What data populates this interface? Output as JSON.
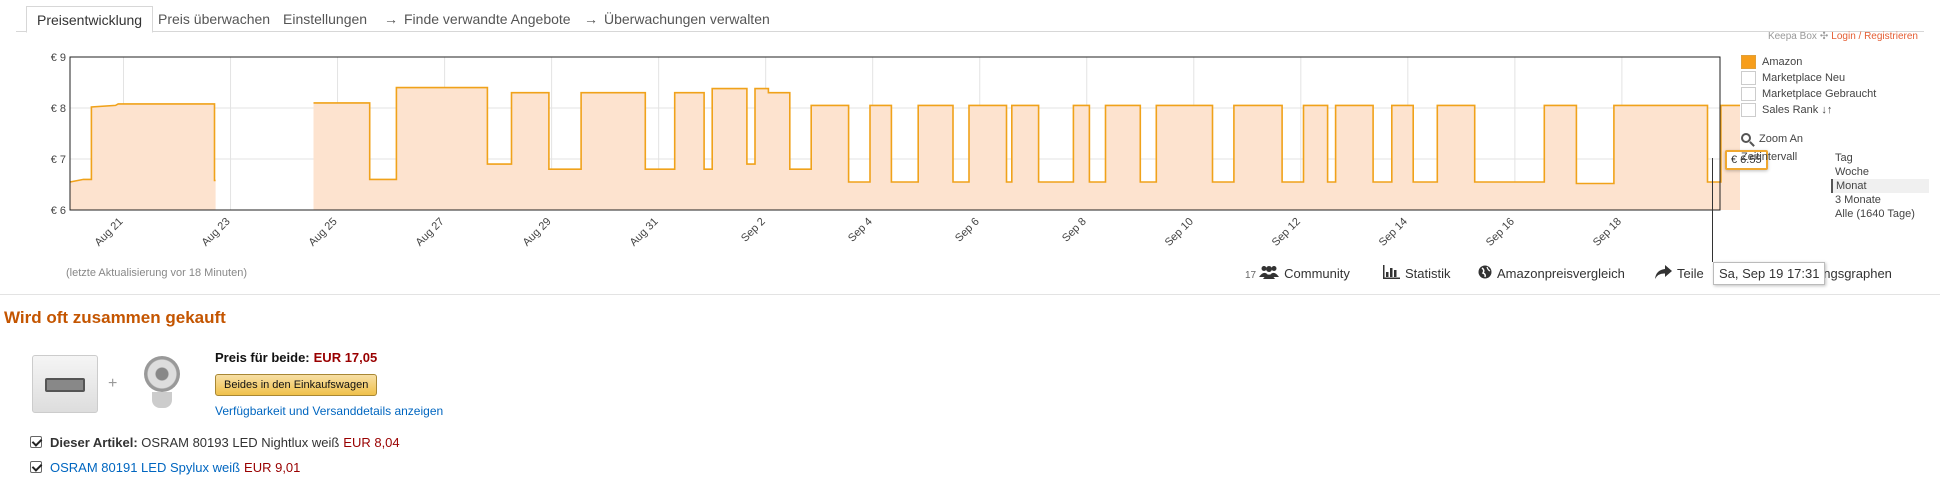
{
  "tabs": [
    {
      "label": "Preisentwicklung",
      "active": true
    },
    {
      "label": "Preis überwachen"
    },
    {
      "label": "Einstellungen"
    },
    {
      "label": "Finde verwandte Angebote",
      "arrow": "→"
    },
    {
      "label": "Überwachungen verwalten",
      "arrow": "→"
    }
  ],
  "keepa_box": {
    "label": "Keepa Box",
    "gear_icon": "✣",
    "login": "Login / Registrieren"
  },
  "colors": {
    "amazon_line": "#f0a21a",
    "amazon_fill": "#fde3cf",
    "grid": "#e3e3e3",
    "accent": "#c45500"
  },
  "chart_data": {
    "type": "line",
    "ylim": [
      6,
      9
    ],
    "yticks": [
      "€ 9",
      "€ 8",
      "€ 7",
      "€ 6"
    ],
    "xlim": [
      "2016-08-20T00:00",
      "2016-09-19T20:00"
    ],
    "xtick_labels": [
      "Aug 21",
      "Aug 23",
      "Aug 25",
      "Aug 27",
      "Aug 29",
      "Aug 31",
      "Sep 2",
      "Sep 4",
      "Sep 6",
      "Sep 8",
      "Sep 10",
      "Sep 12",
      "Sep 14",
      "Sep 16",
      "Sep 18"
    ],
    "series": [
      {
        "name": "Amazon",
        "points": [
          [
            0.0,
            6.55
          ],
          [
            0.25,
            6.6
          ],
          [
            0.4,
            6.6
          ],
          [
            0.4,
            8.02
          ],
          [
            0.85,
            8.05
          ],
          [
            0.9,
            8.08
          ],
          [
            2.7,
            8.08
          ],
          [
            2.7,
            6.58
          ],
          [
            2.72,
            6.58
          ],
          [
            2.72,
            null
          ],
          [
            2.75,
            6.0
          ],
          [
            4.5,
            6.0
          ],
          [
            4.5,
            null
          ],
          [
            4.55,
            8.1
          ],
          [
            5.6,
            8.1
          ],
          [
            5.6,
            6.6
          ],
          [
            6.1,
            6.6
          ],
          [
            6.1,
            8.4
          ],
          [
            7.8,
            8.4
          ],
          [
            7.8,
            6.9
          ],
          [
            8.25,
            6.9
          ],
          [
            8.25,
            8.3
          ],
          [
            8.95,
            8.3
          ],
          [
            8.95,
            6.8
          ],
          [
            9.55,
            6.8
          ],
          [
            9.55,
            8.3
          ],
          [
            10.75,
            8.3
          ],
          [
            10.75,
            6.8
          ],
          [
            11.3,
            6.8
          ],
          [
            11.3,
            8.3
          ],
          [
            11.85,
            8.3
          ],
          [
            11.85,
            6.8
          ],
          [
            12.0,
            6.8
          ],
          [
            12.0,
            8.38
          ],
          [
            12.65,
            8.38
          ],
          [
            12.65,
            6.9
          ],
          [
            12.8,
            6.9
          ],
          [
            12.8,
            8.38
          ],
          [
            13.05,
            8.38
          ],
          [
            13.05,
            8.3
          ],
          [
            13.45,
            8.3
          ],
          [
            13.45,
            6.8
          ],
          [
            13.85,
            6.8
          ],
          [
            13.85,
            8.05
          ],
          [
            14.55,
            8.05
          ],
          [
            14.55,
            6.55
          ],
          [
            14.95,
            6.55
          ],
          [
            14.95,
            8.05
          ],
          [
            15.35,
            8.05
          ],
          [
            15.35,
            6.55
          ],
          [
            15.85,
            6.55
          ],
          [
            15.85,
            8.05
          ],
          [
            16.5,
            8.05
          ],
          [
            16.5,
            6.55
          ],
          [
            16.8,
            6.55
          ],
          [
            16.8,
            8.05
          ],
          [
            17.5,
            8.05
          ],
          [
            17.5,
            6.55
          ],
          [
            17.6,
            6.55
          ],
          [
            17.6,
            8.05
          ],
          [
            18.1,
            8.05
          ],
          [
            18.1,
            6.55
          ],
          [
            18.75,
            6.55
          ],
          [
            18.75,
            8.05
          ],
          [
            19.05,
            8.05
          ],
          [
            19.05,
            6.55
          ],
          [
            19.35,
            6.55
          ],
          [
            19.35,
            8.05
          ],
          [
            20.0,
            8.05
          ],
          [
            20.0,
            6.55
          ],
          [
            20.3,
            6.55
          ],
          [
            20.3,
            8.05
          ],
          [
            21.35,
            8.05
          ],
          [
            21.35,
            6.55
          ],
          [
            21.75,
            6.55
          ],
          [
            21.75,
            8.05
          ],
          [
            22.65,
            8.05
          ],
          [
            22.65,
            6.55
          ],
          [
            23.05,
            6.55
          ],
          [
            23.05,
            8.05
          ],
          [
            23.5,
            8.05
          ],
          [
            23.5,
            6.55
          ],
          [
            23.65,
            6.55
          ],
          [
            23.65,
            8.05
          ],
          [
            24.35,
            8.05
          ],
          [
            24.35,
            6.55
          ],
          [
            24.7,
            6.55
          ],
          [
            24.7,
            8.05
          ],
          [
            25.1,
            8.05
          ],
          [
            25.1,
            6.55
          ],
          [
            25.55,
            6.55
          ],
          [
            25.55,
            8.05
          ],
          [
            26.25,
            8.05
          ],
          [
            26.25,
            6.55
          ],
          [
            27.55,
            6.55
          ],
          [
            27.55,
            8.05
          ],
          [
            28.15,
            8.05
          ],
          [
            28.15,
            6.52
          ],
          [
            28.85,
            6.52
          ],
          [
            28.85,
            8.05
          ],
          [
            30.6,
            8.05
          ],
          [
            30.6,
            6.55
          ],
          [
            30.85,
            6.55
          ],
          [
            30.85,
            8.05
          ],
          [
            31.5,
            8.05
          ],
          [
            31.5,
            6.55
          ],
          [
            31.85,
            6.55
          ],
          [
            31.85,
            8.05
          ],
          [
            31.9,
            8.05
          ]
        ]
      }
    ],
    "legend": [
      "Amazon",
      "Marketplace Neu",
      "Marketplace Gebraucht",
      "Sales Rank"
    ],
    "legend_active": [
      true,
      false,
      false,
      false
    ],
    "current_price_label": "€ 6.55",
    "hover_date": "Sa, Sep 19 17:31"
  },
  "legend_extra": {
    "sales_rank_icon": "↓↑",
    "zoom_label": "Zoom An",
    "zeitintervall_label": "Zeitintervall"
  },
  "zeitintervall_options": [
    {
      "label": "Tag"
    },
    {
      "label": "Woche"
    },
    {
      "label": "Monat",
      "selected": true
    },
    {
      "label": "3 Monate"
    },
    {
      "label": "Alle (1640 Tage)"
    }
  ],
  "last_update": "(letzte Aktualisierung vor 18 Minuten)",
  "links": {
    "community_count": "17",
    "community": "Community",
    "statistik": "Statistik",
    "amazonpreisvergleich": "Amazonpreisvergleich",
    "teilen_left": "Teile",
    "teilen_right": "ungsgraphen"
  },
  "fbt": {
    "title": "Wird oft zusammen gekauft",
    "price_label": "Preis für beide:",
    "price_value": "EUR 17,05",
    "add_button": "Beides in den Einkaufswagen",
    "availability_link": "Verfügbarkeit und Versanddetails anzeigen",
    "items": [
      {
        "prefix": "Dieser Artikel:",
        "name": "OSRAM 80193 LED Nightlux weiß",
        "price": "EUR 8,04"
      },
      {
        "name": "OSRAM 80191 LED Spylux weiß",
        "price": "EUR 9,01"
      }
    ]
  }
}
